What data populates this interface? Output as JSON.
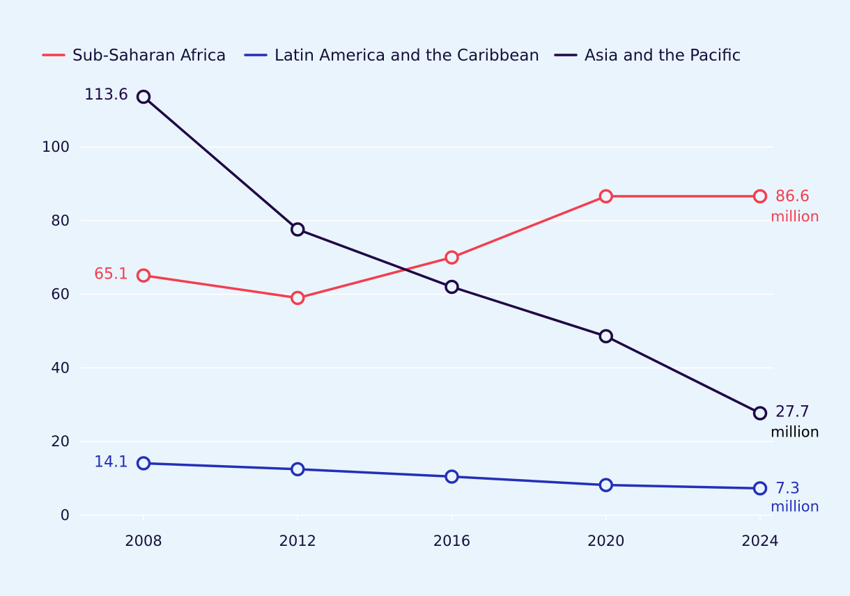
{
  "chart_data": {
    "type": "line",
    "x": [
      2008,
      2012,
      2016,
      2020,
      2024
    ],
    "ylim": [
      0,
      120
    ],
    "yticks": [
      0,
      20,
      40,
      60,
      80,
      100
    ],
    "xlabel": "",
    "ylabel": "",
    "title": "",
    "grid": true,
    "legend_position": "top-left",
    "series": [
      {
        "name": "Sub-Saharan Africa",
        "color": "#f23f4e",
        "values": [
          65.1,
          59,
          70,
          86.6,
          86.6
        ],
        "start_label": "65.1",
        "end_label": "86.6",
        "end_unit": "million",
        "end_unit_color": "#f23f4e"
      },
      {
        "name": "Latin America and the Caribbean",
        "color": "#2330b8",
        "values": [
          14.1,
          12.5,
          10.5,
          8.2,
          7.3
        ],
        "start_label": "14.1",
        "end_label": "7.3",
        "end_unit": "million",
        "end_unit_color": "#2330b8"
      },
      {
        "name": "Asia and the Pacific",
        "color": "#1f0845",
        "values": [
          113.6,
          77.6,
          62,
          48.6,
          27.7
        ],
        "start_label": "113.6",
        "end_label": "27.7",
        "end_unit": "million",
        "end_unit_color": "#000000"
      }
    ]
  }
}
